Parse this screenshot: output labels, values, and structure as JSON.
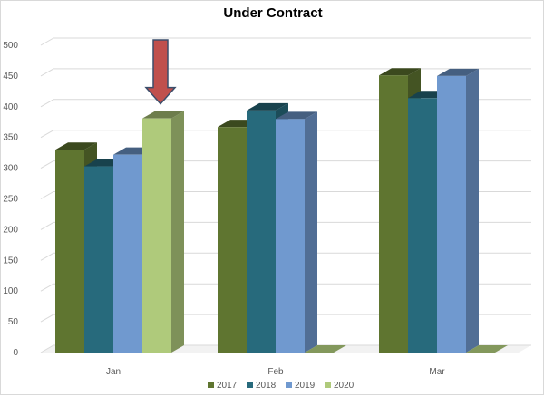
{
  "chart_data": {
    "type": "bar",
    "title": "Under Contract",
    "categories": [
      "Jan",
      "Feb",
      "Mar"
    ],
    "series": [
      {
        "name": "2017",
        "values": [
          330,
          367,
          451
        ],
        "color": "#5f7530"
      },
      {
        "name": "2018",
        "values": [
          303,
          394,
          414
        ],
        "color": "#276a7c"
      },
      {
        "name": "2019",
        "values": [
          322,
          380,
          450
        ],
        "color": "#7099cf"
      },
      {
        "name": "2020",
        "values": [
          381,
          0,
          0
        ],
        "color": "#afca7b"
      }
    ],
    "yticks": [
      "0",
      "50",
      "100",
      "150",
      "200",
      "250",
      "300",
      "350",
      "400",
      "450",
      "500"
    ],
    "ylim": [
      0,
      500
    ],
    "grid": true,
    "legend_position": "bottom",
    "style": "3d-clustered-column",
    "annotation": {
      "type": "down-arrow",
      "target_category": "Jan",
      "target_series": "2020",
      "color": "#c0504d"
    }
  }
}
